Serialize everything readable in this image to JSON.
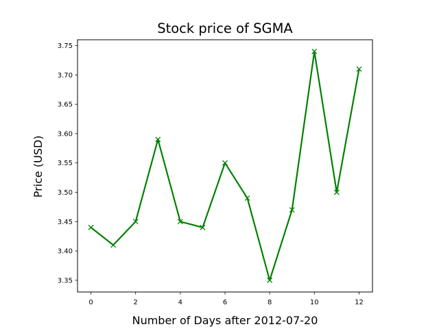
{
  "chart_data": {
    "type": "line",
    "title": "Stock price of SGMA",
    "xlabel": "Number of Days after 2012-07-20",
    "ylabel": "Price (USD)",
    "xlim": [
      -0.6,
      12.6
    ],
    "ylim": [
      3.33,
      3.76
    ],
    "x_ticks": [
      0,
      2,
      4,
      6,
      8,
      10,
      12
    ],
    "y_ticks": [
      3.35,
      3.4,
      3.45,
      3.5,
      3.55,
      3.6,
      3.65,
      3.7,
      3.75
    ],
    "y_tick_labels": [
      "3.35",
      "3.40",
      "3.45",
      "3.50",
      "3.55",
      "3.60",
      "3.65",
      "3.70",
      "3.75"
    ],
    "grid": false,
    "legend": "none",
    "series": [
      {
        "color": "#008000",
        "marker": "x",
        "x": [
          0,
          1,
          2,
          3,
          4,
          5,
          6,
          7,
          8,
          9,
          10,
          11,
          12
        ],
        "y": [
          3.44,
          3.41,
          3.45,
          3.59,
          3.45,
          3.44,
          3.55,
          3.49,
          3.35,
          3.47,
          3.74,
          3.5,
          3.71
        ]
      }
    ]
  }
}
